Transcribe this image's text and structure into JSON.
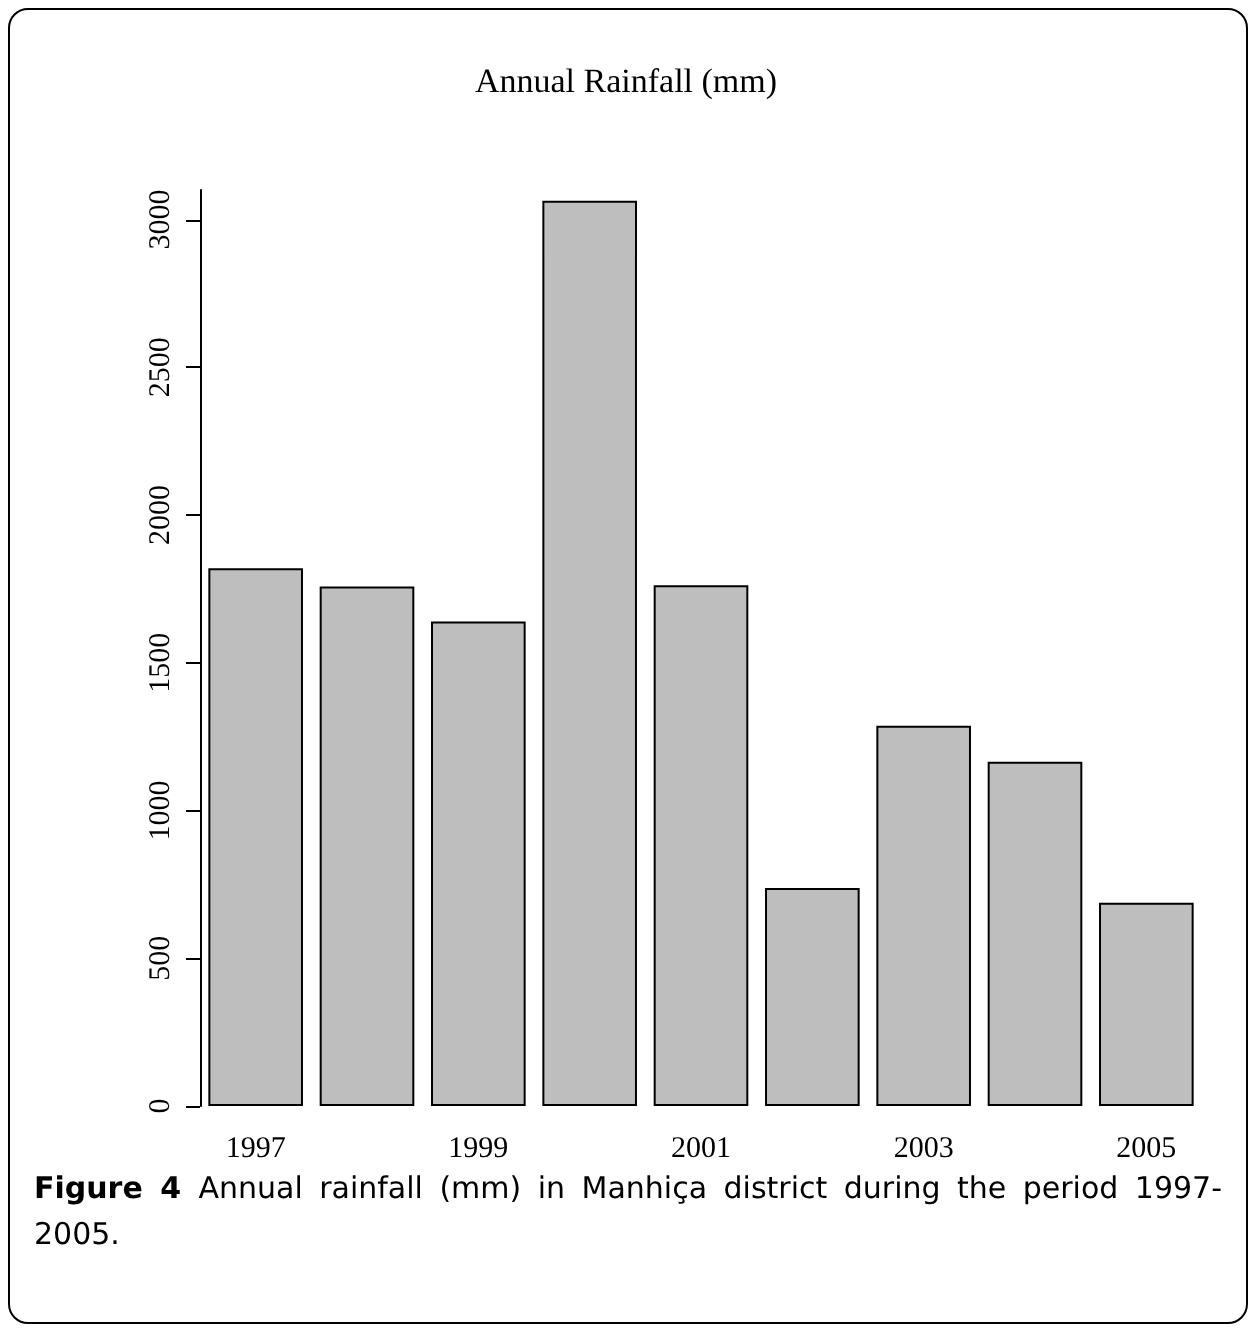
{
  "chart_data": {
    "type": "bar",
    "title": "Annual Rainfall (mm)",
    "categories": [
      "1997",
      null,
      "1999",
      null,
      "2001",
      null,
      "2003",
      null,
      "2005"
    ],
    "values": [
      1820,
      1758,
      1640,
      3064,
      1762,
      738,
      1287,
      1165,
      688
    ],
    "color": "#bebebe",
    "ylim": [
      0,
      3100
    ],
    "yticks": [
      0,
      500,
      1000,
      1500,
      2000,
      2500,
      3000
    ],
    "grid": false,
    "annotations": [
      "Figure 4 Annual rainfall (mm) in Manhiça district during the period 1997-2005."
    ]
  }
}
